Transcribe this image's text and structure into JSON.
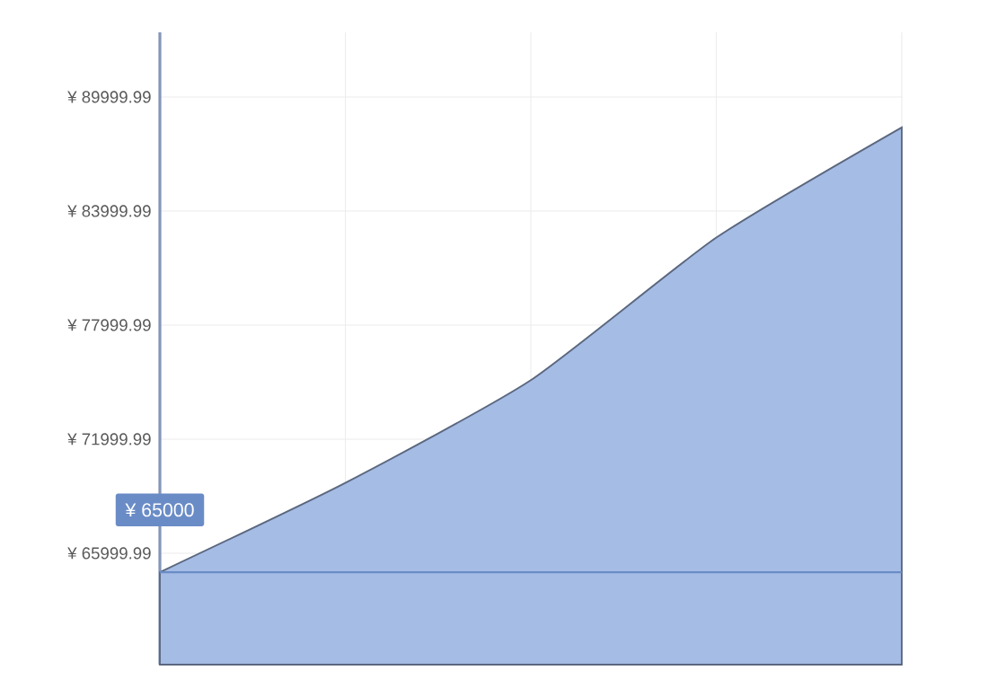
{
  "chart_data": {
    "type": "area",
    "categories": [
      null,
      null,
      null,
      null,
      null
    ],
    "values": [
      65000,
      69700,
      75100,
      82600,
      88400
    ],
    "color": "#a5bce5",
    "ylim": [
      60140,
      93400
    ],
    "yticks": [
      {
        "value": 65999.99,
        "label": "¥ 65999.99"
      },
      {
        "value": 71999.99,
        "label": "¥ 71999.99"
      },
      {
        "value": 77999.99,
        "label": "¥ 77999.99"
      },
      {
        "value": 83999.99,
        "label": "¥ 83999.99"
      },
      {
        "value": 89999.99,
        "label": "¥ 89999.99"
      }
    ],
    "grid": true,
    "tick_labels": "y",
    "ref_lines": [
      {
        "axis": "y",
        "value": 65000,
        "label": "¥ 65000",
        "color": "#6a8cc6"
      }
    ]
  }
}
